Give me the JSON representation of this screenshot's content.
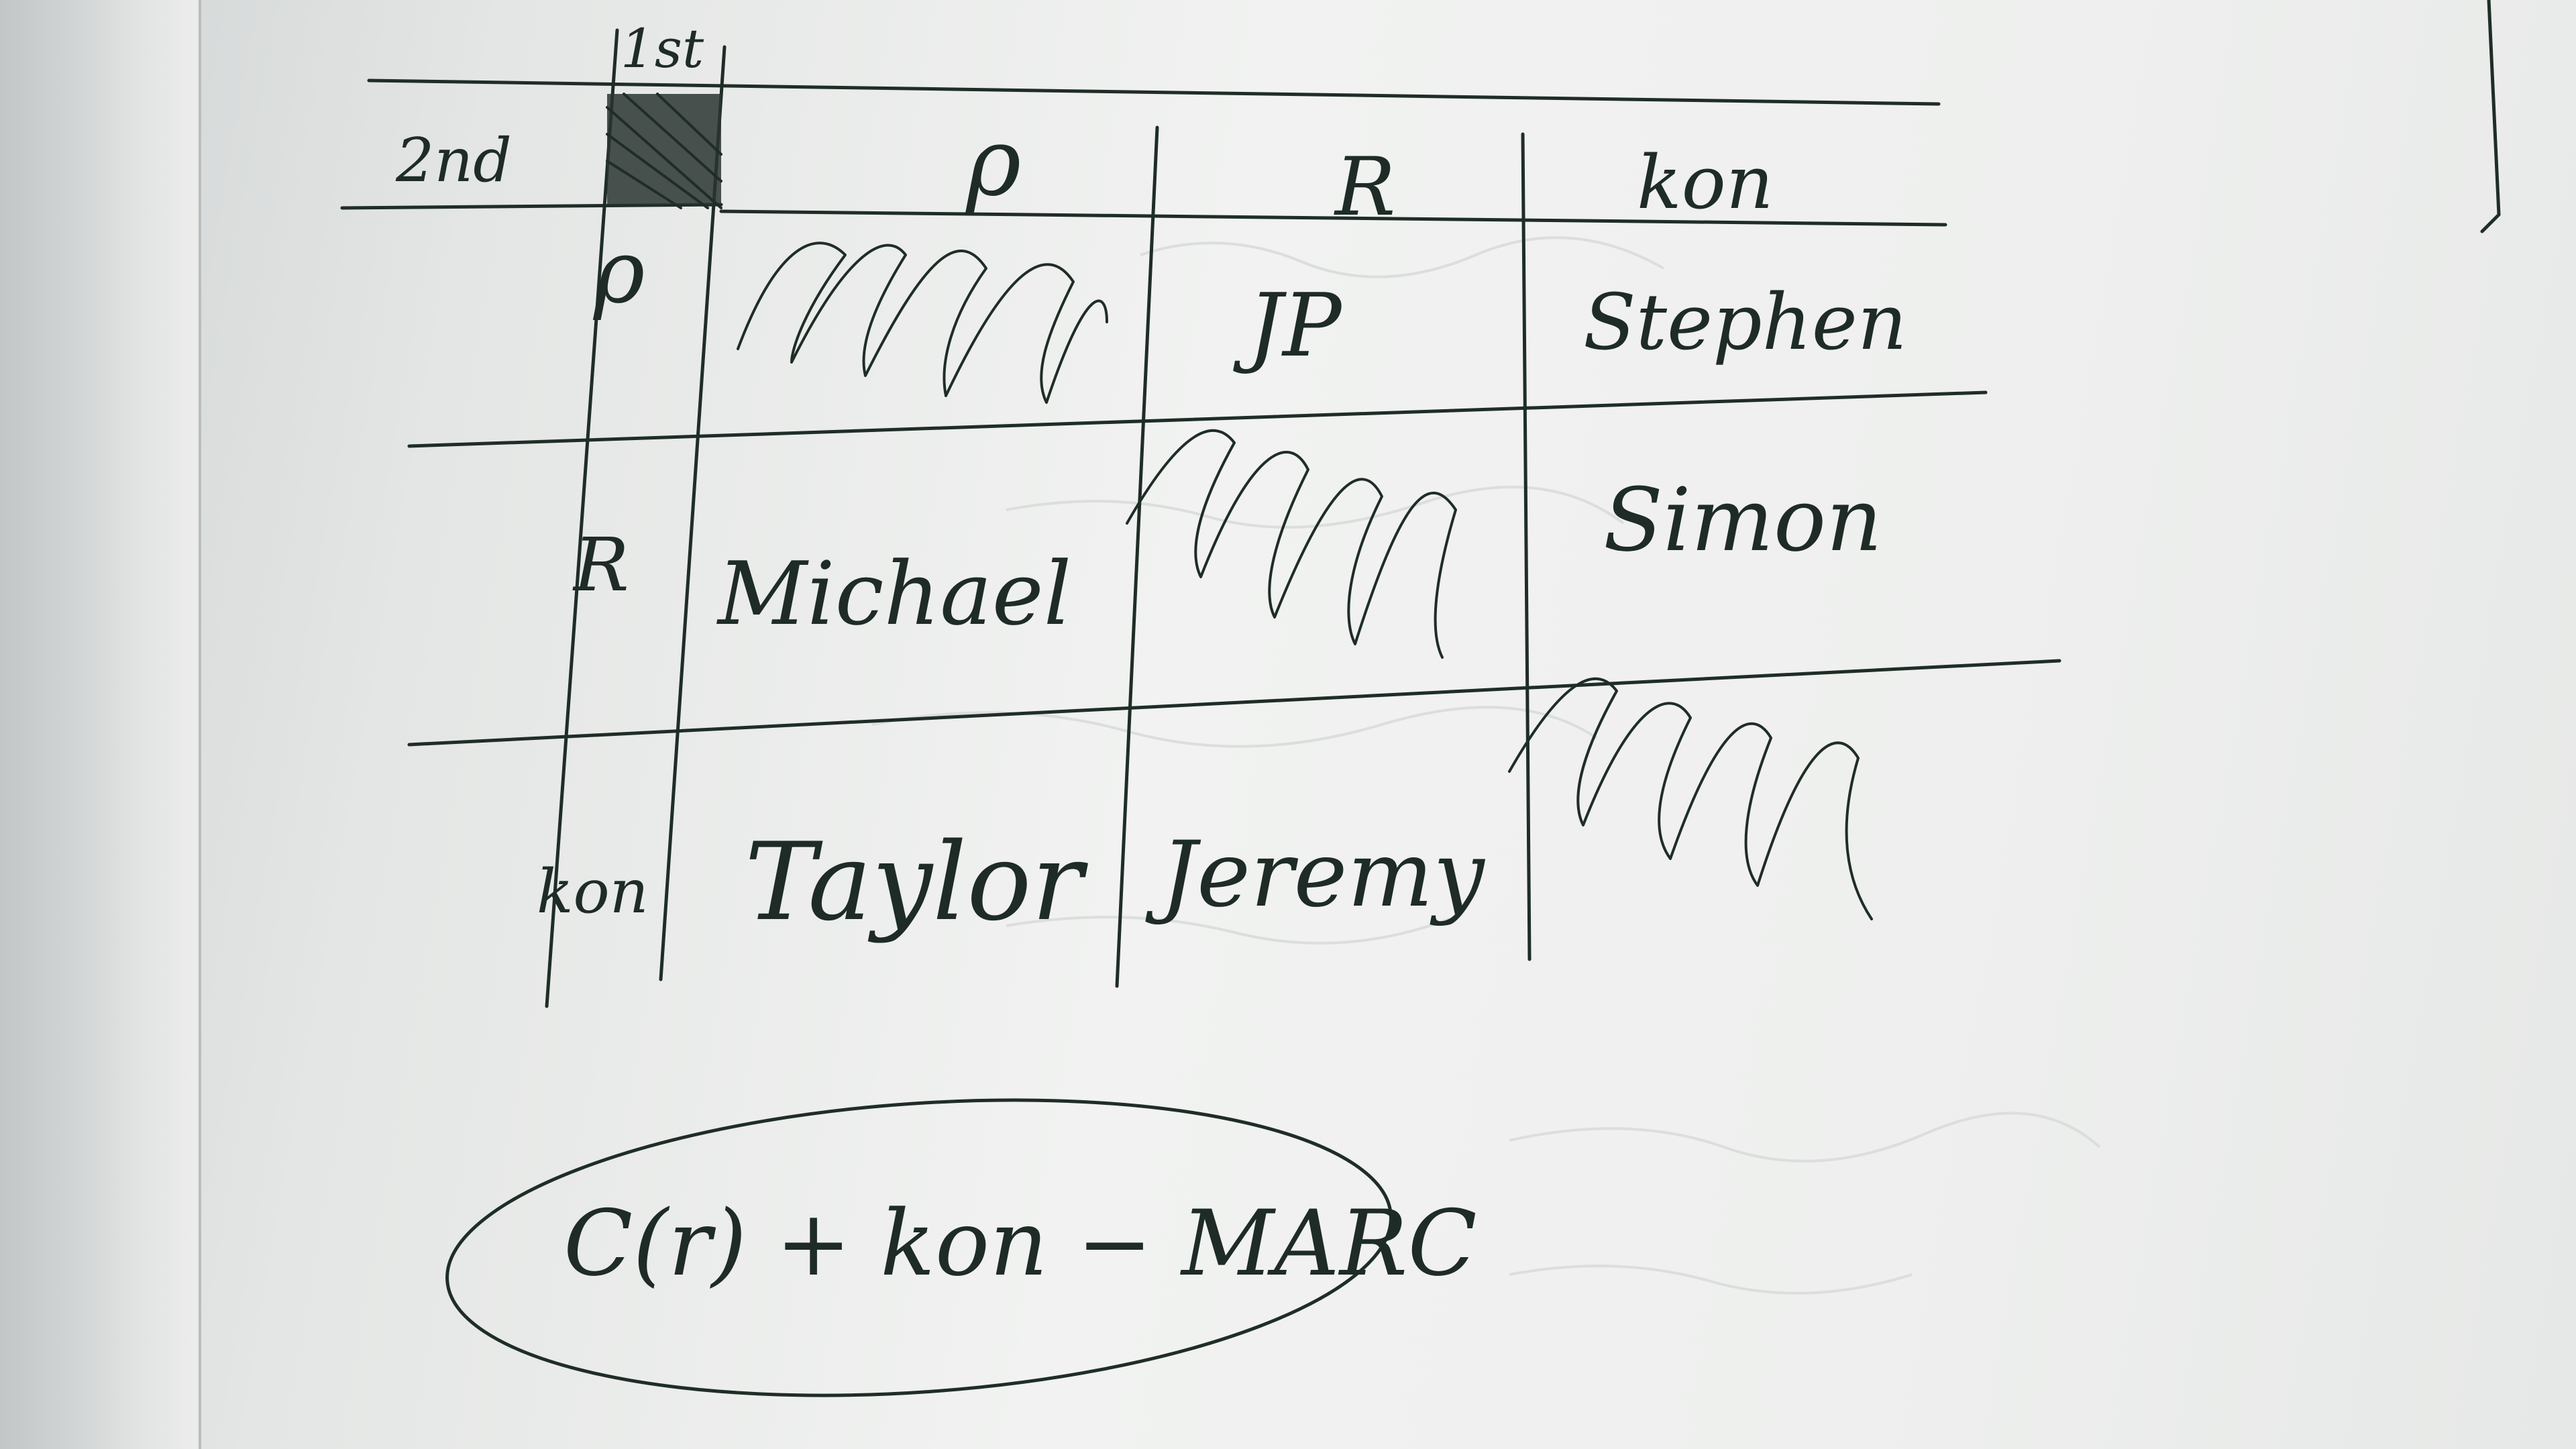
{
  "photo": {
    "subject": "handwritten-grid"
  },
  "grid": {
    "label_first": "1st",
    "label_second": "2nd",
    "column_headers": [
      "ρ",
      "R",
      "kon"
    ],
    "row_headers": [
      "ρ",
      "R",
      "kon"
    ],
    "cells": [
      [
        "",
        "JP",
        "Stephen"
      ],
      [
        "Michael",
        "",
        "Simon"
      ],
      [
        "Taylor",
        "Jeremy",
        ""
      ]
    ]
  },
  "formula": {
    "text": "C(r) + kon − MARC"
  },
  "colors": {
    "ink": "#1f2d27",
    "paper": "#f1f2f1"
  }
}
